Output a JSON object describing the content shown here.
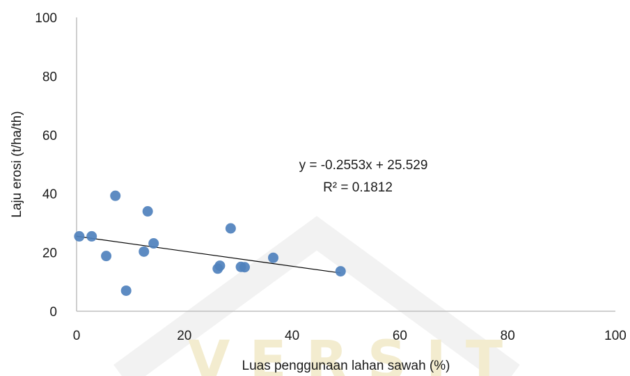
{
  "chart_data": {
    "type": "scatter",
    "title": "",
    "xlabel": "Luas penggunaan lahan sawah (%)",
    "ylabel": "Laju erosi (t/ha/th)",
    "xlim": [
      0,
      100
    ],
    "ylim": [
      0,
      100
    ],
    "x_ticks": [
      "0",
      "20",
      "40",
      "60",
      "80",
      "100"
    ],
    "y_ticks": [
      "0",
      "20",
      "40",
      "60",
      "80",
      "100"
    ],
    "grid": false,
    "legend": "none",
    "point_color": "#4f81bd",
    "trendline_color": "#000000",
    "series": [
      {
        "x": [
          0.5,
          2.8,
          5.5,
          7.2,
          9.2,
          12.5,
          13.2,
          14.3,
          26.2,
          26.6,
          28.6,
          30.5,
          31.2,
          36.5,
          49.0
        ],
        "y": [
          25.5,
          25.5,
          18.8,
          39.3,
          7.0,
          20.3,
          34.0,
          23.1,
          14.5,
          15.5,
          28.2,
          15.1,
          15.0,
          18.2,
          13.6
        ]
      }
    ],
    "trendline": {
      "slope": -0.2553,
      "intercept": 25.529,
      "x_range": [
        0,
        49.0
      ],
      "equation": "y = -0.2553x + 25.529",
      "r2": "R² = 0.1812"
    }
  }
}
